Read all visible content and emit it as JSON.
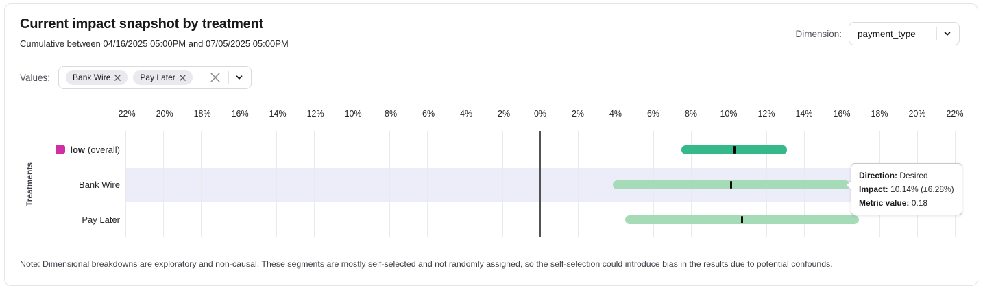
{
  "header": {
    "title": "Current impact snapshot by treatment",
    "subtitle": "Cumulative between 04/16/2025 05:00PM and 07/05/2025 05:00PM",
    "dimension_label": "Dimension:",
    "dimension_value": "payment_type"
  },
  "filters": {
    "values_label": "Values:",
    "chips": [
      {
        "label": "Bank Wire"
      },
      {
        "label": "Pay Later"
      }
    ]
  },
  "chart_data": {
    "type": "bar",
    "subtype": "horizontal-interval-with-center-marker",
    "ylabel": "Treatments",
    "x_axis": {
      "unit": "%",
      "min": -22,
      "max": 22,
      "ticks_pct": [
        -22,
        -20,
        -18,
        -16,
        -14,
        -12,
        -10,
        -8,
        -6,
        -4,
        -2,
        0,
        2,
        4,
        6,
        8,
        10,
        12,
        14,
        16,
        18,
        20,
        22
      ]
    },
    "grid": true,
    "zero_line": true,
    "colors": {
      "overall_bar": "#35b98a",
      "treatment_bar": "#a5dbb7",
      "marker": "#0a0a0a",
      "legend_swatch": "#d02fa3",
      "highlight_band": "#ededfa"
    },
    "rows": [
      {
        "label": "low",
        "suffix": " (overall)",
        "impact_pct": 10.3,
        "ci_pct": 2.8,
        "color": "#35b98a",
        "legend_color": "#d02fa3",
        "highlighted": false
      },
      {
        "label": "Bank Wire",
        "suffix": "",
        "impact_pct": 10.14,
        "ci_pct": 6.28,
        "color": "#a5dbb7",
        "highlighted": true
      },
      {
        "label": "Pay Later",
        "suffix": "",
        "impact_pct": 10.7,
        "ci_pct": 6.2,
        "color": "#a5dbb7",
        "highlighted": false
      }
    ]
  },
  "tooltip": {
    "rows": [
      {
        "label": "Direction:",
        "value": "Desired"
      },
      {
        "label": "Impact:",
        "value": "10.14% (±6.28%)"
      },
      {
        "label": "Metric value:",
        "value": "0.18"
      }
    ]
  },
  "note": "Note: Dimensional breakdowns are exploratory and non-causal. These segments are mostly self-selected and not randomly assigned, so the self-selection could introduce bias in the results due to potential confounds."
}
